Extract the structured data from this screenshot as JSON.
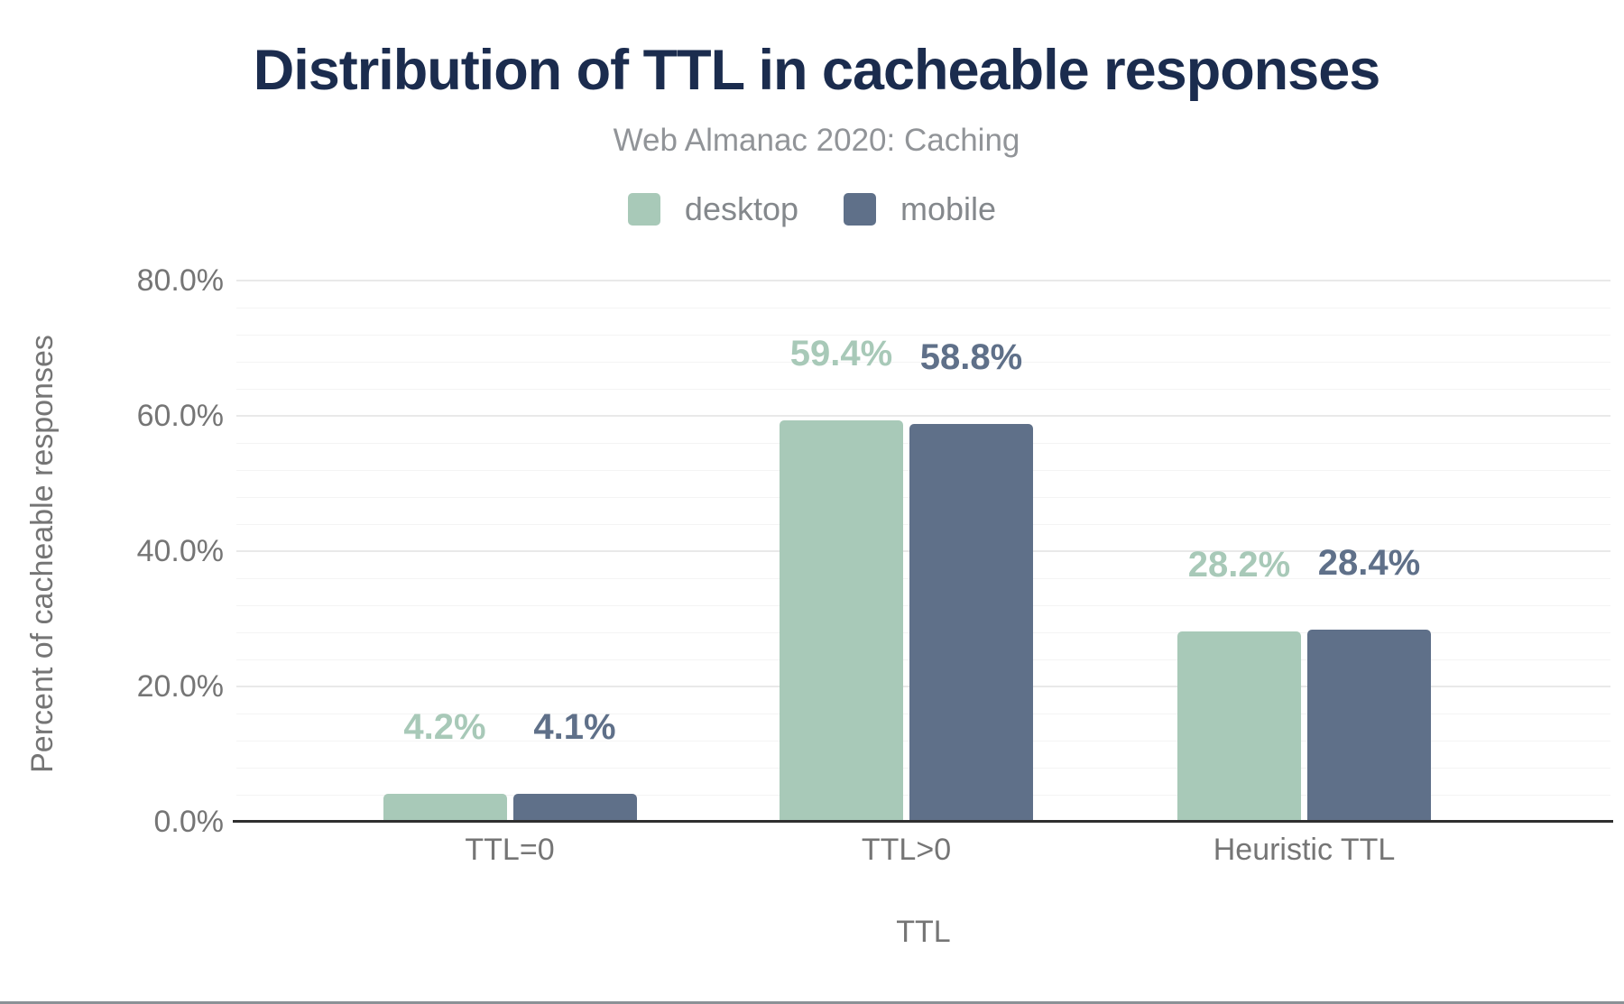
{
  "chart_data": {
    "type": "bar",
    "title": "Distribution of TTL in cacheable responses",
    "subtitle": "Web Almanac 2020: Caching",
    "xlabel": "TTL",
    "ylabel": "Percent of cacheable responses",
    "categories": [
      "TTL=0",
      "TTL>0",
      "Heuristic TTL"
    ],
    "series": [
      {
        "name": "desktop",
        "color": "#a8c9b8",
        "values": [
          4.2,
          59.4,
          28.2
        ],
        "labels": [
          "4.2%",
          "59.4%",
          "28.2%"
        ]
      },
      {
        "name": "mobile",
        "color": "#5f7089",
        "values": [
          4.1,
          58.8,
          28.4
        ],
        "labels": [
          "4.1%",
          "58.8%",
          "28.4%"
        ]
      }
    ],
    "ylim": [
      0,
      80
    ],
    "yticks": [
      {
        "value": 0,
        "label": "0.0%"
      },
      {
        "value": 20,
        "label": "20.0%"
      },
      {
        "value": 40,
        "label": "40.0%"
      },
      {
        "value": 60,
        "label": "60.0%"
      },
      {
        "value": 80,
        "label": "80.0%"
      }
    ],
    "grid": {
      "major_step": 20,
      "minor_step": 4,
      "visible": true
    },
    "legend_position": "top"
  },
  "colors": {
    "title": "#1b2c4e",
    "subtitle": "#919498",
    "axis_text": "#757575",
    "baseline": "#2f2f2f",
    "desktop": "#a8c9b8",
    "mobile": "#5f7089"
  }
}
